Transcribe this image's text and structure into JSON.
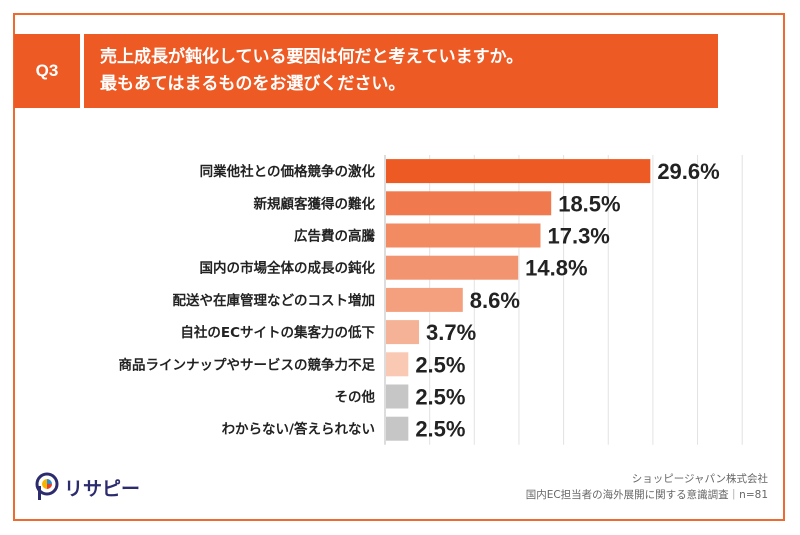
{
  "question": {
    "badge": "Q3",
    "line1": "売上成長が鈍化している要因は何だと考えていますか。",
    "line2": "最もあてはまるものをお選びください。"
  },
  "chart_data": {
    "type": "bar",
    "orientation": "horizontal",
    "title": "売上成長が鈍化している要因は何だと考えていますか。最もあてはまるものをお選びください。",
    "xlim": [
      0,
      40
    ],
    "grid": true,
    "categories": [
      "同業他社との価格競争の激化",
      "新規顧客獲得の難化",
      "広告費の高騰",
      "国内の市場全体の成長の鈍化",
      "配送や在庫管理などのコスト増加",
      "自社のECサイトの集客力の低下",
      "商品ラインナップやサービスの競争力不足",
      "その他",
      "わからない/答えられない"
    ],
    "values": [
      29.6,
      18.5,
      17.3,
      14.8,
      8.6,
      3.7,
      2.5,
      2.5,
      2.5
    ],
    "value_labels": [
      "29.6%",
      "18.5%",
      "17.3%",
      "14.8%",
      "8.6%",
      "3.7%",
      "2.5%",
      "2.5%",
      "2.5%"
    ],
    "colors": [
      "#ee5a24",
      "#f07a4e",
      "#f28a62",
      "#f29470",
      "#f4a07f",
      "#f6b296",
      "#f9c9b4",
      "#c6c6c6",
      "#c6c6c6"
    ]
  },
  "footer": {
    "company": "ショッピージャパン株式会社",
    "survey": "国内EC担当者の海外展開に関する意識調査｜n=81"
  },
  "logo": {
    "text": "リサピー",
    "brand_color": "#2b2b6e"
  }
}
